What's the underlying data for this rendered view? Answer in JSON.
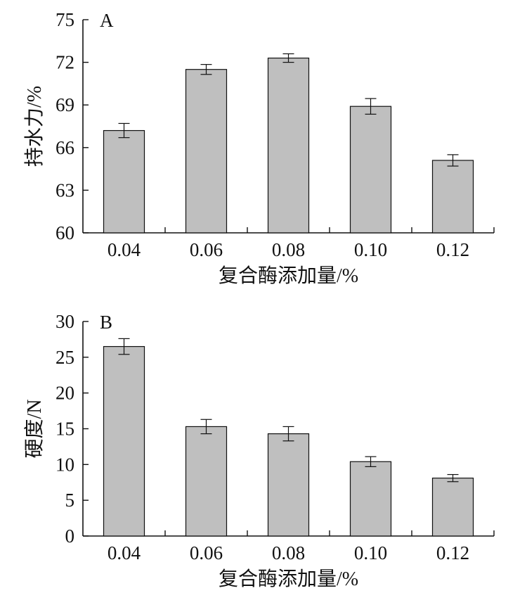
{
  "chart_data": [
    {
      "type": "bar",
      "panel_label": "A",
      "categories": [
        "0.04",
        "0.06",
        "0.08",
        "0.10",
        "0.12"
      ],
      "values": [
        67.2,
        71.5,
        72.3,
        68.9,
        65.1
      ],
      "error": [
        0.5,
        0.35,
        0.3,
        0.55,
        0.4
      ],
      "xlabel": "复合酶添加量/%",
      "ylabel": "持水力/%",
      "ylim": [
        60,
        75
      ],
      "yticks": [
        60,
        63,
        66,
        69,
        72,
        75
      ],
      "ytick_labels": [
        "60",
        "63",
        "66",
        "69",
        "72",
        "75"
      ],
      "bar_color": "#bfbfbf",
      "grid": false
    },
    {
      "type": "bar",
      "panel_label": "B",
      "categories": [
        "0.04",
        "0.06",
        "0.08",
        "0.10",
        "0.12"
      ],
      "values": [
        26.5,
        15.3,
        14.3,
        10.4,
        8.1
      ],
      "error": [
        1.1,
        1.0,
        1.0,
        0.7,
        0.5
      ],
      "xlabel": "复合酶添加量/%",
      "ylabel": "硬度/N",
      "ylim": [
        0,
        30
      ],
      "yticks": [
        0,
        5,
        10,
        15,
        20,
        25,
        30
      ],
      "ytick_labels": [
        "0",
        "5",
        "10",
        "15",
        "20",
        "25",
        "30"
      ],
      "bar_color": "#bfbfbf",
      "grid": false
    }
  ]
}
